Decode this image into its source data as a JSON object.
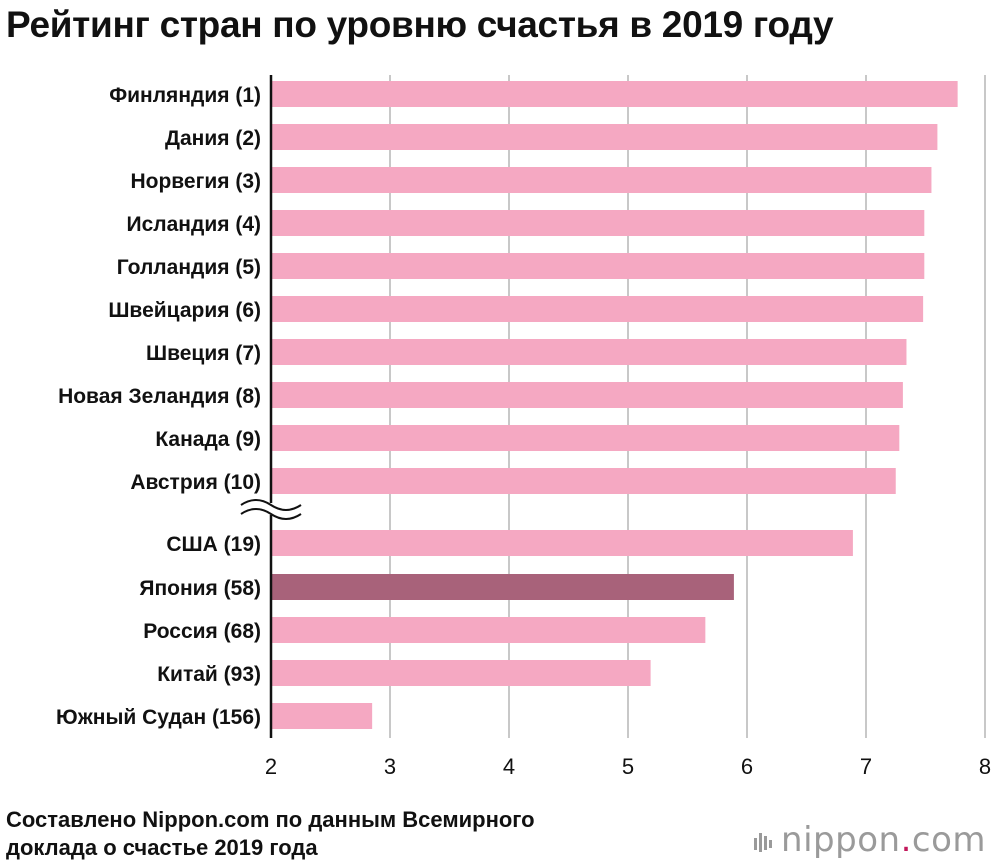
{
  "title": "Рейтинг стран по уровню счастья в 2019 году",
  "chart_data": {
    "type": "bar",
    "orientation": "horizontal",
    "title": "Рейтинг стран по уровню счастья в 2019 году",
    "categories": [
      "Финляндия (1)",
      "Дания (2)",
      "Норвегия (3)",
      "Исландия (4)",
      "Голландия (5)",
      "Швейцария (6)",
      "Швеция (7)",
      "Новая Зеландия (8)",
      "Канада (9)",
      "Австрия (10)",
      "США (19)",
      "Япония (58)",
      "Россия (68)",
      "Китай (93)",
      "Южный Судан (156)"
    ],
    "values": [
      7.77,
      7.6,
      7.55,
      7.49,
      7.49,
      7.48,
      7.34,
      7.31,
      7.28,
      7.25,
      6.89,
      5.89,
      5.65,
      5.19,
      2.85
    ],
    "highlight_index": 11,
    "axis_break_after_index": 9,
    "xlim": [
      2,
      8
    ],
    "xticks": [
      "2",
      "3",
      "4",
      "5",
      "6",
      "7",
      "8"
    ],
    "grid": true,
    "colors": {
      "bar": "#f5a8c2",
      "highlight": "#a8627a",
      "grid": "#c8c8c8",
      "axis": "#111111"
    }
  },
  "footer": {
    "line1": "Составлено Nippon.com по данным Всемирного",
    "line2": "доклада о счастье 2019 года"
  },
  "brand": {
    "name": "nippon",
    "suffix": "com",
    "separator": "."
  }
}
